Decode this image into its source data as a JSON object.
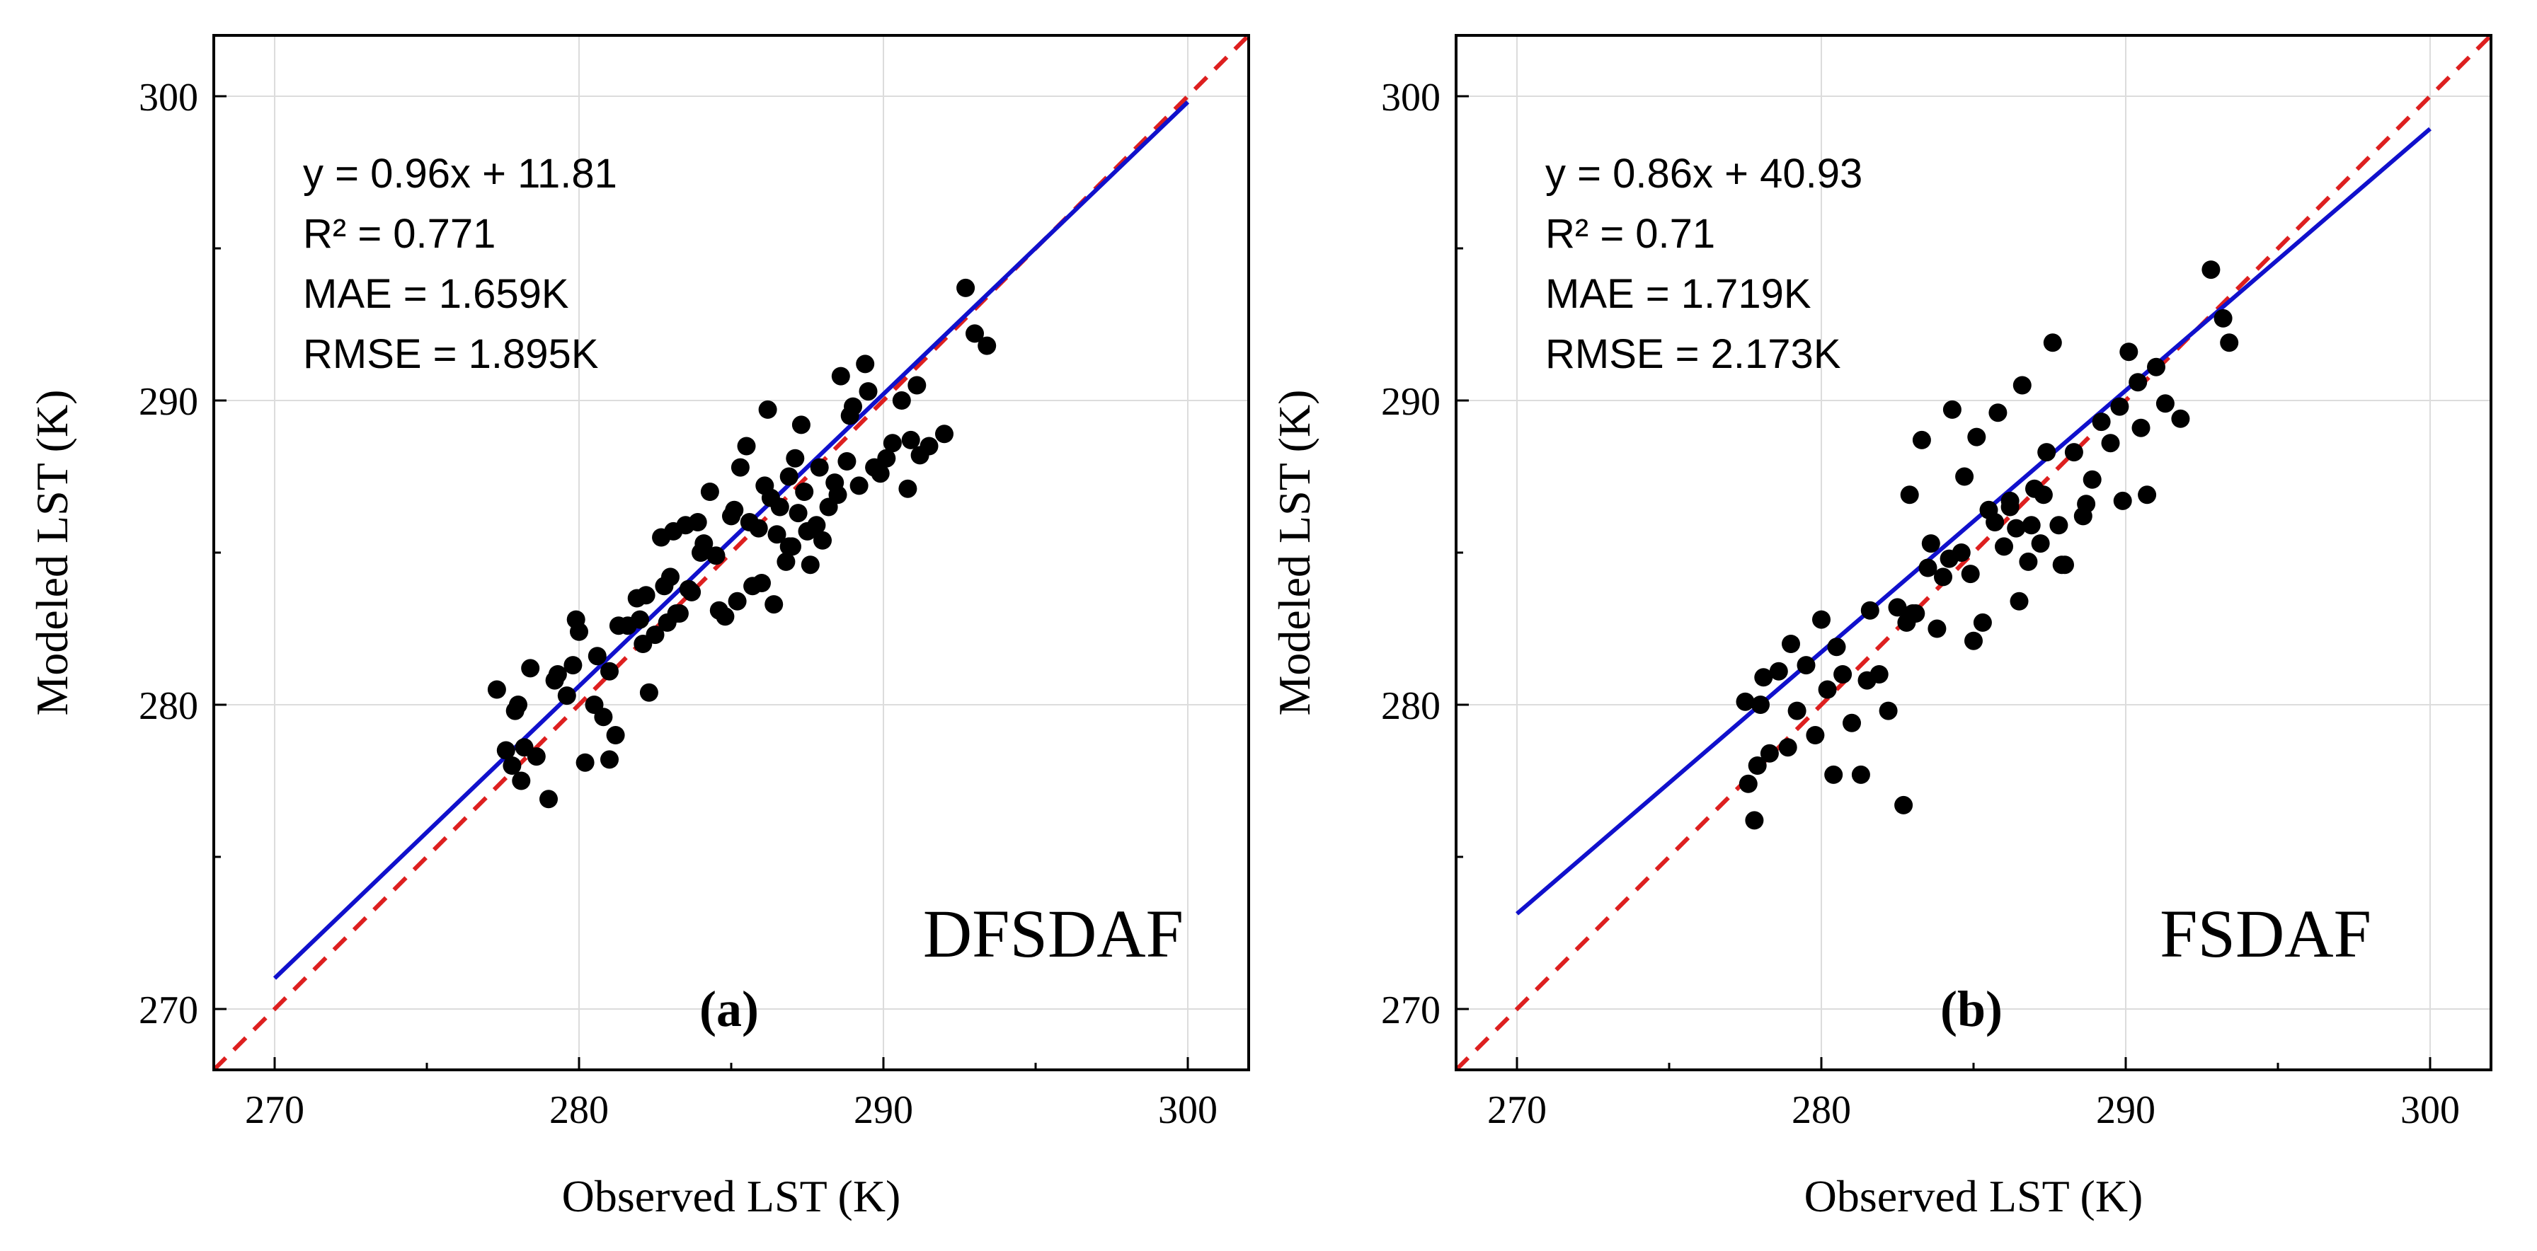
{
  "chart_data": [
    {
      "type": "scatter",
      "panel_label": "(a)",
      "model_name": "DFSDAF",
      "xlabel": "Observed LST (K)",
      "ylabel": "Modeled LST (K)",
      "xlim": [
        268,
        302
      ],
      "ylim": [
        268,
        302
      ],
      "xticks": [
        270,
        280,
        290,
        300
      ],
      "yticks": [
        270,
        280,
        290,
        300
      ],
      "grid": true,
      "stats": {
        "equation": "y = 0.96x + 11.81",
        "r2": "R² = 0.771",
        "mae": "MAE = 1.659K",
        "rmse": "RMSE = 1.895K"
      },
      "fit_line": {
        "slope": 0.96,
        "intercept": 11.81,
        "x_range": [
          270,
          300
        ],
        "color": "#1010cc"
      },
      "reference_line": {
        "label": "1:1",
        "color": "#dd1f1f"
      },
      "points": {
        "x": [
          277.3,
          277.6,
          277.8,
          277.9,
          278.0,
          278.1,
          278.4,
          278.6,
          279.0,
          279.3,
          279.6,
          279.8,
          279.9,
          280.0,
          280.2,
          280.5,
          280.8,
          281.0,
          281.2,
          281.6,
          281.9,
          282.0,
          282.2,
          282.3,
          282.5,
          282.7,
          282.8,
          283.0,
          283.1,
          283.3,
          283.5,
          283.7,
          283.9,
          284.1,
          284.3,
          284.6,
          284.8,
          285.0,
          285.1,
          285.3,
          285.5,
          285.7,
          285.9,
          286.0,
          286.2,
          286.3,
          286.4,
          286.5,
          286.6,
          286.8,
          286.9,
          287.0,
          287.1,
          287.2,
          287.3,
          287.4,
          287.6,
          287.8,
          287.9,
          288.0,
          288.2,
          288.4,
          288.6,
          288.8,
          289.0,
          289.2,
          289.4,
          289.7,
          289.9,
          290.1,
          290.3,
          290.6,
          290.9,
          291.2,
          291.5,
          292.0,
          292.7,
          293.0,
          293.4,
          285.6,
          286.1,
          284.0,
          283.2,
          282.9,
          281.3,
          280.6,
          279.2,
          278.2,
          289.5,
          290.8,
          291.1,
          287.5,
          286.9,
          288.5,
          285.2,
          284.5,
          283.6,
          282.1,
          281.0,
          288.9
        ],
        "y": [
          280.5,
          278.5,
          278.0,
          279.8,
          280.0,
          277.5,
          281.2,
          278.3,
          276.9,
          281.0,
          280.3,
          281.3,
          282.8,
          282.4,
          278.1,
          280.0,
          279.6,
          278.2,
          279.0,
          282.6,
          283.5,
          282.8,
          283.6,
          280.4,
          282.3,
          285.5,
          283.9,
          284.2,
          285.7,
          283.0,
          285.9,
          283.7,
          286.0,
          285.3,
          287.0,
          283.1,
          282.9,
          286.2,
          286.4,
          287.8,
          288.5,
          283.9,
          285.8,
          284.0,
          289.7,
          286.8,
          283.3,
          285.6,
          286.5,
          284.7,
          287.5,
          285.2,
          288.1,
          286.3,
          289.2,
          287.0,
          284.6,
          285.9,
          287.8,
          285.4,
          286.5,
          287.3,
          290.8,
          288.0,
          289.8,
          287.2,
          291.2,
          287.8,
          287.6,
          288.1,
          288.6,
          290.0,
          288.7,
          288.2,
          288.5,
          288.9,
          293.7,
          292.2,
          291.8,
          286.0,
          287.2,
          285.0,
          283.0,
          282.7,
          282.6,
          281.6,
          280.8,
          278.6,
          290.3,
          287.1,
          290.5,
          285.7,
          285.2,
          286.9,
          283.4,
          284.9,
          283.8,
          282.0,
          281.1,
          289.5
        ]
      }
    },
    {
      "type": "scatter",
      "panel_label": "(b)",
      "model_name": "FSDAF",
      "xlabel": "Observed LST (K)",
      "ylabel": "Modeled LST (K)",
      "xlim": [
        268,
        302
      ],
      "ylim": [
        268,
        302
      ],
      "xticks": [
        270,
        280,
        290,
        300
      ],
      "yticks": [
        270,
        280,
        290,
        300
      ],
      "grid": true,
      "stats": {
        "equation": "y = 0.86x + 40.93",
        "r2": "R² = 0.71",
        "mae": "MAE = 1.719K",
        "rmse": "RMSE = 2.173K"
      },
      "fit_line": {
        "slope": 0.86,
        "intercept": 40.93,
        "x_range": [
          270,
          300
        ],
        "color": "#1010cc"
      },
      "reference_line": {
        "label": "1:1",
        "color": "#dd1f1f"
      },
      "points": {
        "x": [
          277.5,
          277.6,
          277.8,
          277.9,
          278.1,
          278.3,
          278.6,
          278.9,
          279.2,
          279.5,
          279.8,
          280.0,
          280.2,
          280.4,
          280.7,
          281.0,
          281.3,
          281.6,
          281.9,
          282.2,
          282.5,
          282.7,
          282.9,
          283.1,
          283.3,
          283.5,
          283.8,
          284.0,
          284.3,
          284.6,
          284.9,
          285.1,
          285.3,
          285.5,
          285.8,
          286.0,
          286.2,
          286.4,
          286.6,
          286.8,
          287.0,
          287.2,
          287.4,
          287.6,
          287.8,
          288.0,
          288.3,
          288.6,
          288.9,
          289.2,
          289.5,
          289.8,
          290.1,
          290.4,
          290.7,
          291.0,
          291.3,
          291.8,
          292.8,
          293.2,
          293.4,
          287.3,
          286.5,
          285.0,
          284.2,
          283.0,
          282.8,
          281.5,
          280.5,
          279.0,
          278.0,
          288.7,
          289.9,
          290.5,
          286.9,
          285.7,
          284.7,
          283.6,
          287.9,
          286.2
        ],
        "y": [
          280.1,
          277.4,
          276.2,
          278.0,
          280.9,
          278.4,
          281.1,
          278.6,
          279.8,
          281.3,
          279.0,
          282.8,
          280.5,
          277.7,
          281.0,
          279.4,
          277.7,
          283.1,
          281.0,
          279.8,
          283.2,
          276.7,
          286.9,
          283.0,
          288.7,
          284.5,
          282.5,
          284.2,
          289.7,
          285.0,
          284.3,
          288.8,
          282.7,
          286.4,
          289.6,
          285.2,
          286.7,
          285.8,
          290.5,
          284.7,
          287.1,
          285.3,
          288.3,
          291.9,
          285.9,
          284.6,
          288.3,
          286.2,
          287.4,
          289.3,
          288.6,
          289.8,
          291.6,
          290.6,
          286.9,
          291.1,
          289.9,
          289.4,
          294.3,
          292.7,
          291.9,
          286.9,
          283.4,
          282.1,
          284.8,
          283.0,
          282.7,
          280.8,
          281.9,
          282.0,
          280.0,
          286.6,
          286.7,
          289.1,
          285.9,
          286.0,
          287.5,
          285.3,
          284.6,
          286.5
        ]
      }
    }
  ]
}
